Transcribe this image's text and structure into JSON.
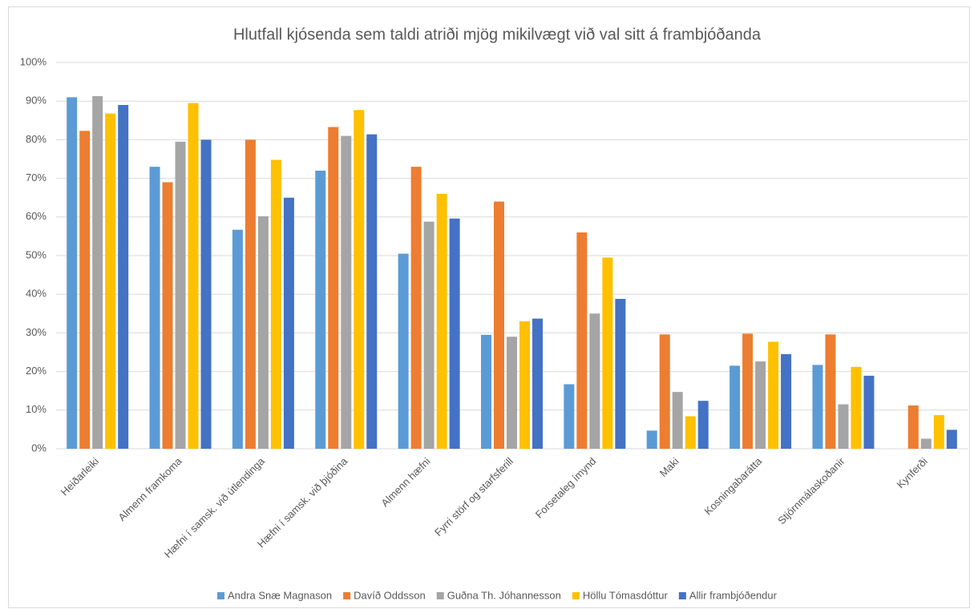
{
  "chart_data": {
    "type": "bar",
    "title": "Hlutfall kjósenda sem taldi atriði mjög mikilvægt við val sitt á frambjóðanda",
    "categories": [
      "Heiðarleiki",
      "Almenn framkoma",
      "Hæfni í samsk. við útlendinga",
      "Hæfni í samsk. við þjóðina",
      "Almenn hæfni",
      "Fyrri störf og starfsferill",
      "Forsetaleg ímynd",
      "Maki",
      "Kosningabarátta",
      "Stjórnmálaskoðanir",
      "Kynferði"
    ],
    "series": [
      {
        "name": "Andra Snæ Magnason",
        "color": "#5b9bd5",
        "values": [
          91,
          73,
          56.7,
          72,
          50.5,
          29.5,
          16.7,
          4.7,
          21.5,
          21.7,
          0
        ]
      },
      {
        "name": "Davíð Oddsson",
        "color": "#ed7d31",
        "values": [
          82.3,
          69,
          80,
          83.3,
          73,
          64,
          56,
          29.6,
          29.8,
          29.6,
          11.2
        ]
      },
      {
        "name": "Guðna Th. Jóhannesson",
        "color": "#a5a5a5",
        "values": [
          91.3,
          79.5,
          60.2,
          81,
          58.8,
          29,
          35,
          14.7,
          22.6,
          11.5,
          2.6
        ]
      },
      {
        "name": "Höllu Tómasdóttur",
        "color": "#ffc000",
        "values": [
          86.8,
          89.5,
          74.8,
          87.7,
          66,
          33,
          49.5,
          8.4,
          27.7,
          21.2,
          8.7
        ]
      },
      {
        "name": "Allir frambjóðendur",
        "color": "#4472c4",
        "values": [
          89,
          80,
          65,
          81.4,
          59.6,
          33.7,
          38.8,
          12.4,
          24.5,
          18.9,
          4.9
        ]
      }
    ],
    "ylim": [
      0,
      100
    ],
    "yticks": [
      {
        "value": 0,
        "label": "0%"
      },
      {
        "value": 10,
        "label": "10%"
      },
      {
        "value": 20,
        "label": "20%"
      },
      {
        "value": 30,
        "label": "30%"
      },
      {
        "value": 40,
        "label": "40%"
      },
      {
        "value": 50,
        "label": "50%"
      },
      {
        "value": 60,
        "label": "60%"
      },
      {
        "value": 70,
        "label": "70%"
      },
      {
        "value": 80,
        "label": "80%"
      },
      {
        "value": 90,
        "label": "90%"
      },
      {
        "value": 100,
        "label": "100%"
      }
    ],
    "grid": true,
    "legend": "bottom"
  }
}
